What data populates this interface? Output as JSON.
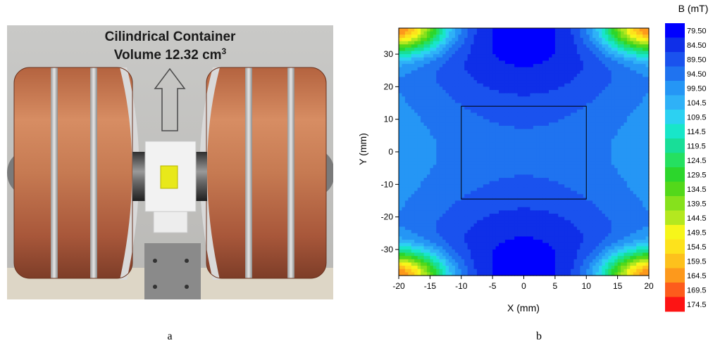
{
  "photo": {
    "title_line1": "Cilindrical Container",
    "title_line2": "Volume 12.32 cm",
    "title_sup": "3"
  },
  "labels": {
    "a": "a",
    "b": "b"
  },
  "chart_data": {
    "type": "heatmap",
    "plot": "contour",
    "title": "",
    "xlabel": "X (mm)",
    "ylabel": "Y (mm)",
    "xlim": [
      -20,
      20
    ],
    "ylim": [
      -38,
      38
    ],
    "xticks": [
      -20,
      -15,
      -10,
      -5,
      0,
      5,
      10,
      15,
      20
    ],
    "yticks": [
      -30,
      -20,
      -10,
      0,
      10,
      20,
      30
    ],
    "colorbar": {
      "title": "B (mT)",
      "levels": [
        "79.50",
        "84.50",
        "89.50",
        "94.50",
        "99.50",
        "104.5",
        "109.5",
        "114.5",
        "119.5",
        "124.5",
        "129.5",
        "134.5",
        "139.5",
        "144.5",
        "149.5",
        "154.5",
        "159.5",
        "164.5",
        "169.5",
        "174.5"
      ],
      "colors": [
        "#0000ff",
        "#0f2fe8",
        "#1a52ee",
        "#1f73f0",
        "#2596f5",
        "#2fb1f7",
        "#2cd1f2",
        "#18e6c9",
        "#18de98",
        "#25e060",
        "#2cd62c",
        "#53d81a",
        "#86e11c",
        "#b4e81f",
        "#f6f61a",
        "#fde21c",
        "#fdc11c",
        "#fd991c",
        "#fd5c1c",
        "#fd1414"
      ]
    },
    "region_box": {
      "x": [
        -10,
        10
      ],
      "y": [
        -14.5,
        14
      ]
    },
    "field_model": {
      "background_mT": 103,
      "center_dip": [
        {
          "x": 0,
          "y": 37.5,
          "depth_mT": 24,
          "sx": 14,
          "sy": 21
        },
        {
          "x": 0,
          "y": -37.5,
          "depth_mT": 24,
          "sx": 14,
          "sy": 21
        }
      ],
      "corner_peak": [
        {
          "x": -20,
          "y": 38,
          "amp_mT": 72,
          "r": 7.5
        },
        {
          "x": 20,
          "y": 38,
          "amp_mT": 72,
          "r": 7.5
        },
        {
          "x": -20,
          "y": -38,
          "amp_mT": 72,
          "r": 7.5
        },
        {
          "x": 20,
          "y": -38,
          "amp_mT": 72,
          "r": 7.5
        }
      ]
    }
  }
}
